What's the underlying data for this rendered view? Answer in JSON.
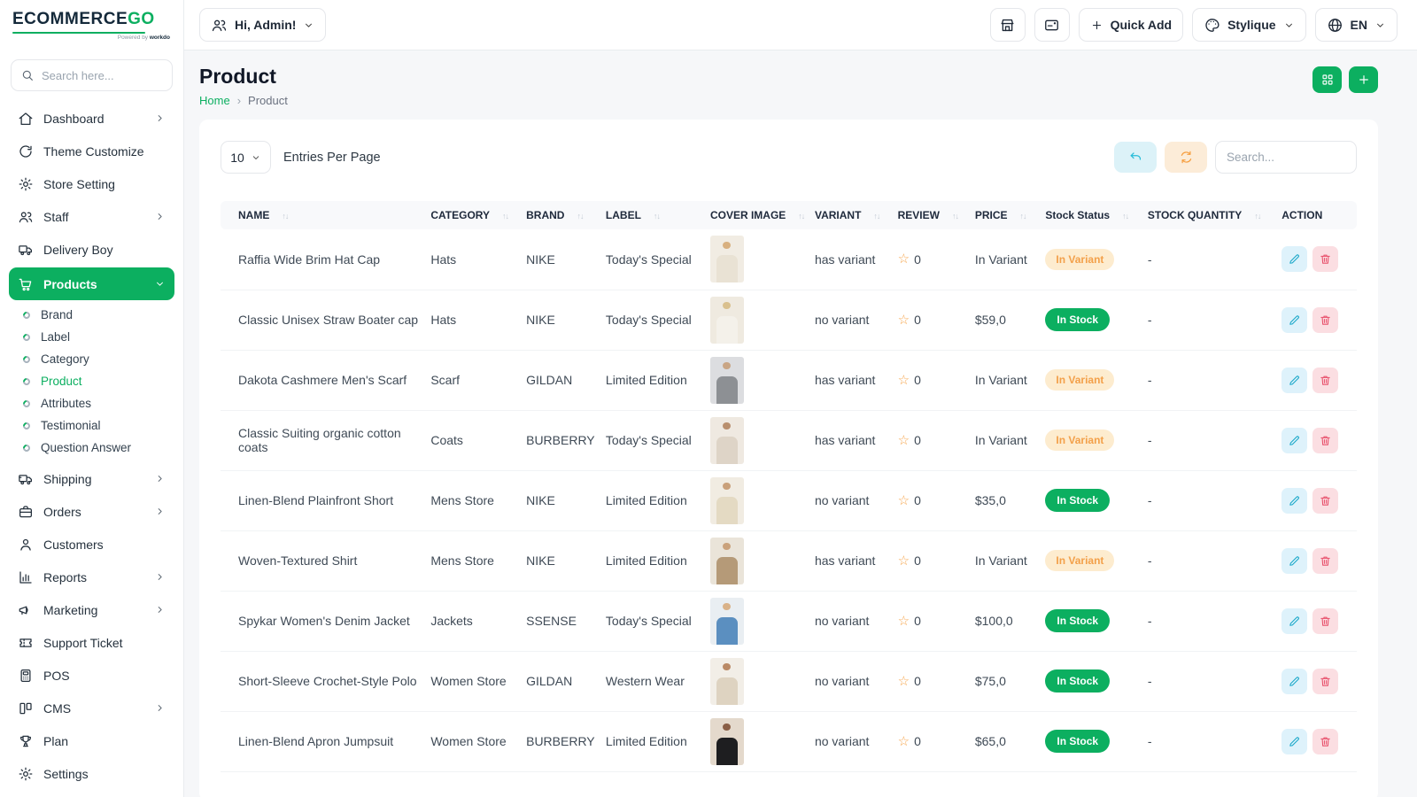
{
  "brand": {
    "name_primary": "ECOMMERCE",
    "name_accent": "GO",
    "powered_prefix": "Powered by",
    "powered_brand": "workdo",
    "accent_color": "#0caf60"
  },
  "sidebar": {
    "search_placeholder": "Search here...",
    "items": [
      {
        "label": "Dashboard",
        "icon": "home",
        "chevron": "right"
      },
      {
        "label": "Theme Customize",
        "icon": "theme"
      },
      {
        "label": "Store Setting",
        "icon": "store-setting"
      },
      {
        "label": "Staff",
        "icon": "staff",
        "chevron": "right"
      },
      {
        "label": "Delivery Boy",
        "icon": "delivery"
      },
      {
        "label": "Products",
        "icon": "products",
        "chevron": "down",
        "active": true,
        "children": [
          {
            "label": "Brand"
          },
          {
            "label": "Label"
          },
          {
            "label": "Category"
          },
          {
            "label": "Product",
            "active": true
          },
          {
            "label": "Attributes"
          },
          {
            "label": "Testimonial"
          },
          {
            "label": "Question Answer"
          }
        ]
      },
      {
        "label": "Shipping",
        "icon": "shipping",
        "chevron": "right"
      },
      {
        "label": "Orders",
        "icon": "orders",
        "chevron": "right"
      },
      {
        "label": "Customers",
        "icon": "customers"
      },
      {
        "label": "Reports",
        "icon": "reports",
        "chevron": "right"
      },
      {
        "label": "Marketing",
        "icon": "marketing",
        "chevron": "right"
      },
      {
        "label": "Support Ticket",
        "icon": "ticket"
      },
      {
        "label": "POS",
        "icon": "pos"
      },
      {
        "label": "CMS",
        "icon": "cms",
        "chevron": "right"
      },
      {
        "label": "Plan",
        "icon": "plan"
      },
      {
        "label": "Settings",
        "icon": "settings"
      }
    ]
  },
  "topbar": {
    "greeting": "Hi, Admin!",
    "quick_add_label": "Quick Add",
    "stylique_label": "Stylique",
    "language": "EN"
  },
  "page": {
    "title": "Product",
    "breadcrumb_home": "Home",
    "breadcrumb_current": "Product"
  },
  "card": {
    "entries_value": "10",
    "entries_label": "Entries Per Page",
    "search_placeholder": "Search..."
  },
  "table": {
    "headers": [
      {
        "label": "NAME",
        "sortable": true
      },
      {
        "label": "CATEGORY",
        "sortable": true
      },
      {
        "label": "BRAND",
        "sortable": true
      },
      {
        "label": "LABEL",
        "sortable": true
      },
      {
        "label": "COVER IMAGE",
        "sortable": true
      },
      {
        "label": "VARIANT",
        "sortable": true
      },
      {
        "label": "REVIEW",
        "sortable": true
      },
      {
        "label": "PRICE",
        "sortable": true
      },
      {
        "label": "Stock Status",
        "sortable": true
      },
      {
        "label": "STOCK QUANTITY",
        "sortable": true
      },
      {
        "label": "ACTION",
        "sortable": false
      }
    ],
    "rows": [
      {
        "name": "Raffia Wide Brim Hat Cap",
        "category": "Hats",
        "brand": "NIKE",
        "label": "Today's Special",
        "variant": "has variant",
        "review": "0",
        "price": "In Variant",
        "stock_status": "In Variant",
        "stock_status_type": "variant",
        "stock_quantity": "-",
        "image_bg": "#f1ece3",
        "image_fg": "#e9e2d4",
        "image_head": "#d8b080"
      },
      {
        "name": "Classic Unisex Straw Boater cap",
        "category": "Hats",
        "brand": "NIKE",
        "label": "Today's Special",
        "variant": "no variant",
        "review": "0",
        "price": "$59,0",
        "stock_status": "In Stock",
        "stock_status_type": "stock",
        "stock_quantity": "-",
        "image_bg": "#efeae0",
        "image_fg": "#f4f1ea",
        "image_head": "#d9c08e"
      },
      {
        "name": "Dakota Cashmere Men's Scarf",
        "category": "Scarf",
        "brand": "GILDAN",
        "label": "Limited Edition",
        "variant": "has variant",
        "review": "0",
        "price": "In Variant",
        "stock_status": "In Variant",
        "stock_status_type": "variant",
        "stock_quantity": "-",
        "image_bg": "#dcdde0",
        "image_fg": "#8d9094",
        "image_head": "#c9a585"
      },
      {
        "name": "Classic Suiting organic cotton coats",
        "category": "Coats",
        "brand": "BURBERRY",
        "label": "Today's Special",
        "variant": "has variant",
        "review": "0",
        "price": "In Variant",
        "stock_status": "In Variant",
        "stock_status_type": "variant",
        "stock_quantity": "-",
        "image_bg": "#efe9e1",
        "image_fg": "#ded4c7",
        "image_head": "#b98f6e"
      },
      {
        "name": "Linen-Blend Plainfront Short",
        "category": "Mens Store",
        "brand": "NIKE",
        "label": "Limited Edition",
        "variant": "no variant",
        "review": "0",
        "price": "$35,0",
        "stock_status": "In Stock",
        "stock_status_type": "stock",
        "stock_quantity": "-",
        "image_bg": "#f1ece2",
        "image_fg": "#e4dac3",
        "image_head": "#c9a07a"
      },
      {
        "name": "Woven-Textured Shirt",
        "category": "Mens Store",
        "brand": "NIKE",
        "label": "Limited Edition",
        "variant": "has variant",
        "review": "0",
        "price": "In Variant",
        "stock_status": "In Variant",
        "stock_status_type": "variant",
        "stock_quantity": "-",
        "image_bg": "#eae4d9",
        "image_fg": "#b59a78",
        "image_head": "#caa27c"
      },
      {
        "name": "Spykar Women's Denim Jacket",
        "category": "Jackets",
        "brand": "SSENSE",
        "label": "Today's Special",
        "variant": "no variant",
        "review": "0",
        "price": "$100,0",
        "stock_status": "In Stock",
        "stock_status_type": "stock",
        "stock_quantity": "-",
        "image_bg": "#e9eef2",
        "image_fg": "#5b8fc0",
        "image_head": "#d9b289"
      },
      {
        "name": "Short-Sleeve Crochet-Style Polo",
        "category": "Women Store",
        "brand": "GILDAN",
        "label": "Western Wear",
        "variant": "no variant",
        "review": "0",
        "price": "$75,0",
        "stock_status": "In Stock",
        "stock_status_type": "stock",
        "stock_quantity": "-",
        "image_bg": "#f2eee7",
        "image_fg": "#ded3c1",
        "image_head": "#ba8a66"
      },
      {
        "name": "Linen-Blend Apron Jumpsuit",
        "category": "Women Store",
        "brand": "BURBERRY",
        "label": "Limited Edition",
        "variant": "no variant",
        "review": "0",
        "price": "$65,0",
        "stock_status": "In Stock",
        "stock_status_type": "stock",
        "stock_quantity": "-",
        "image_bg": "#e4d9cc",
        "image_fg": "#1e1e20",
        "image_head": "#8a5f46"
      }
    ]
  },
  "colors": {
    "primary_green": "#0caf60",
    "badge_variant_bg": "#fdeccf",
    "badge_variant_text": "#f3a04a",
    "in_stock_bg": "#0caf60",
    "edit_bg": "#def2fb",
    "edit_icon": "#1ba8c9",
    "delete_bg": "#fbdee2",
    "delete_icon": "#e8506b",
    "undo_bg": "#dcf2f8",
    "undo_icon": "#25bcd8",
    "refresh_bg": "#fcecd8",
    "refresh_icon": "#f69d3d",
    "star": "#f6a54c"
  }
}
